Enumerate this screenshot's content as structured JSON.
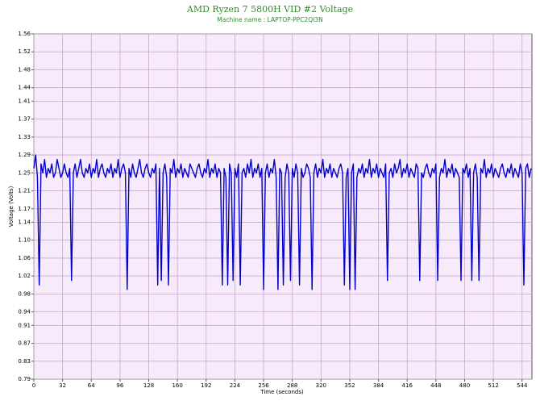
{
  "chart_data": {
    "type": "line",
    "title": "AMD Ryzen 7 5800H VID #2 Voltage",
    "subtitle": "Machine name : LAPTOP-PPC2QI3N",
    "x_label": "Time (seconds)",
    "y_label": "Voltage (Volts)",
    "xlim": [
      0,
      555
    ],
    "ylim": [
      0.79,
      1.56
    ],
    "xticks": [
      0,
      32,
      64,
      96,
      128,
      160,
      192,
      224,
      256,
      288,
      320,
      352,
      384,
      416,
      448,
      480,
      512,
      544
    ],
    "yticks": [
      0.79,
      0.83,
      0.87,
      0.91,
      0.94,
      0.98,
      1.02,
      1.06,
      {
        "value": 1.1,
        "label": "1.10"
      },
      1.14,
      1.17,
      1.21,
      1.25,
      1.29,
      1.33,
      1.37,
      1.41,
      1.44,
      1.48,
      1.52,
      1.56
    ],
    "grid": true,
    "x": [
      0,
      2,
      4,
      6,
      8,
      10,
      12,
      14,
      16,
      18,
      20,
      22,
      24,
      26,
      28,
      30,
      32,
      34,
      36,
      38,
      40,
      42,
      44,
      46,
      48,
      50,
      52,
      54,
      56,
      58,
      60,
      62,
      64,
      66,
      68,
      70,
      72,
      74,
      76,
      78,
      80,
      82,
      84,
      86,
      88,
      90,
      92,
      94,
      96,
      98,
      100,
      102,
      104,
      106,
      108,
      110,
      112,
      114,
      116,
      118,
      120,
      122,
      124,
      126,
      128,
      130,
      132,
      134,
      136,
      138,
      140,
      142,
      144,
      146,
      148,
      150,
      152,
      154,
      156,
      158,
      160,
      162,
      164,
      166,
      168,
      170,
      172,
      174,
      176,
      178,
      180,
      182,
      184,
      186,
      188,
      190,
      192,
      194,
      196,
      198,
      200,
      202,
      204,
      206,
      208,
      210,
      212,
      214,
      216,
      218,
      220,
      222,
      224,
      226,
      228,
      230,
      232,
      234,
      236,
      238,
      240,
      242,
      244,
      246,
      248,
      250,
      252,
      254,
      256,
      258,
      260,
      262,
      264,
      266,
      268,
      270,
      272,
      274,
      276,
      278,
      280,
      282,
      284,
      286,
      288,
      290,
      292,
      294,
      296,
      298,
      300,
      302,
      304,
      306,
      308,
      310,
      312,
      314,
      316,
      318,
      320,
      322,
      324,
      326,
      328,
      330,
      332,
      334,
      336,
      338,
      340,
      342,
      344,
      346,
      348,
      350,
      352,
      354,
      356,
      358,
      360,
      362,
      364,
      366,
      368,
      370,
      372,
      374,
      376,
      378,
      380,
      382,
      384,
      386,
      388,
      390,
      392,
      394,
      396,
      398,
      400,
      402,
      404,
      406,
      408,
      410,
      412,
      414,
      416,
      418,
      420,
      422,
      424,
      426,
      428,
      430,
      432,
      434,
      436,
      438,
      440,
      442,
      444,
      446,
      448,
      450,
      452,
      454,
      456,
      458,
      460,
      462,
      464,
      466,
      468,
      470,
      472,
      474,
      476,
      478,
      480,
      482,
      484,
      486,
      488,
      490,
      492,
      494,
      496,
      498,
      500,
      502,
      504,
      506,
      508,
      510,
      512,
      514,
      516,
      518,
      520,
      522,
      524,
      526,
      528,
      530,
      532,
      534,
      536,
      538,
      540,
      542,
      544,
      546,
      548,
      550,
      552,
      554
    ],
    "series": [
      {
        "name": "VID #2 Voltage",
        "color": "#0000cc",
        "values": [
          1.26,
          1.29,
          1.24,
          1.0,
          1.27,
          1.25,
          1.28,
          1.24,
          1.26,
          1.25,
          1.27,
          1.24,
          1.25,
          1.28,
          1.26,
          1.24,
          1.25,
          1.27,
          1.25,
          1.24,
          1.26,
          1.01,
          1.25,
          1.27,
          1.24,
          1.26,
          1.28,
          1.25,
          1.24,
          1.26,
          1.25,
          1.27,
          1.24,
          1.26,
          1.25,
          1.28,
          1.24,
          1.26,
          1.27,
          1.25,
          1.24,
          1.26,
          1.25,
          1.27,
          1.24,
          1.26,
          1.25,
          1.28,
          1.24,
          1.26,
          1.27,
          1.25,
          0.99,
          1.26,
          1.24,
          1.27,
          1.25,
          1.24,
          1.26,
          1.28,
          1.25,
          1.24,
          1.26,
          1.27,
          1.25,
          1.24,
          1.26,
          1.25,
          1.27,
          1.0,
          1.26,
          1.01,
          1.25,
          1.27,
          1.24,
          1.0,
          1.26,
          1.25,
          1.28,
          1.24,
          1.26,
          1.25,
          1.27,
          1.24,
          1.26,
          1.25,
          1.24,
          1.27,
          1.26,
          1.25,
          1.24,
          1.26,
          1.27,
          1.25,
          1.24,
          1.26,
          1.25,
          1.28,
          1.24,
          1.26,
          1.25,
          1.27,
          1.24,
          1.26,
          1.25,
          1.0,
          1.26,
          1.24,
          1.0,
          1.27,
          1.25,
          1.01,
          1.26,
          1.24,
          1.27,
          1.0,
          1.25,
          1.26,
          1.24,
          1.27,
          1.25,
          1.28,
          1.24,
          1.26,
          1.25,
          1.27,
          1.24,
          1.26,
          0.99,
          1.25,
          1.27,
          1.24,
          1.26,
          1.25,
          1.28,
          1.24,
          0.99,
          1.26,
          1.25,
          1.0,
          1.24,
          1.27,
          1.25,
          1.01,
          1.26,
          1.24,
          1.27,
          1.25,
          1.0,
          1.26,
          1.24,
          1.25,
          1.27,
          1.26,
          1.24,
          0.99,
          1.25,
          1.27,
          1.24,
          1.26,
          1.25,
          1.28,
          1.24,
          1.26,
          1.25,
          1.27,
          1.24,
          1.26,
          1.25,
          1.24,
          1.26,
          1.27,
          1.25,
          1.0,
          1.24,
          1.26,
          0.99,
          1.25,
          1.27,
          0.99,
          1.24,
          1.26,
          1.25,
          1.27,
          1.24,
          1.26,
          1.25,
          1.28,
          1.24,
          1.26,
          1.25,
          1.27,
          1.24,
          1.26,
          1.25,
          1.24,
          1.27,
          1.01,
          1.25,
          1.26,
          1.24,
          1.27,
          1.25,
          1.26,
          1.28,
          1.24,
          1.26,
          1.25,
          1.27,
          1.24,
          1.26,
          1.25,
          1.24,
          1.27,
          1.26,
          1.01,
          1.25,
          1.24,
          1.26,
          1.27,
          1.25,
          1.24,
          1.26,
          1.25,
          1.27,
          1.01,
          1.24,
          1.26,
          1.25,
          1.28,
          1.24,
          1.26,
          1.25,
          1.27,
          1.24,
          1.26,
          1.25,
          1.24,
          1.01,
          1.26,
          1.25,
          1.27,
          1.24,
          1.26,
          1.01,
          1.25,
          1.27,
          1.24,
          1.01,
          1.26,
          1.25,
          1.28,
          1.24,
          1.26,
          1.25,
          1.27,
          1.24,
          1.26,
          1.25,
          1.24,
          1.26,
          1.27,
          1.25,
          1.24,
          1.26,
          1.25,
          1.27,
          1.24,
          1.26,
          1.25,
          1.24,
          1.27,
          1.25,
          1.0,
          1.26,
          1.27,
          1.24,
          1.26
        ]
      }
    ]
  }
}
